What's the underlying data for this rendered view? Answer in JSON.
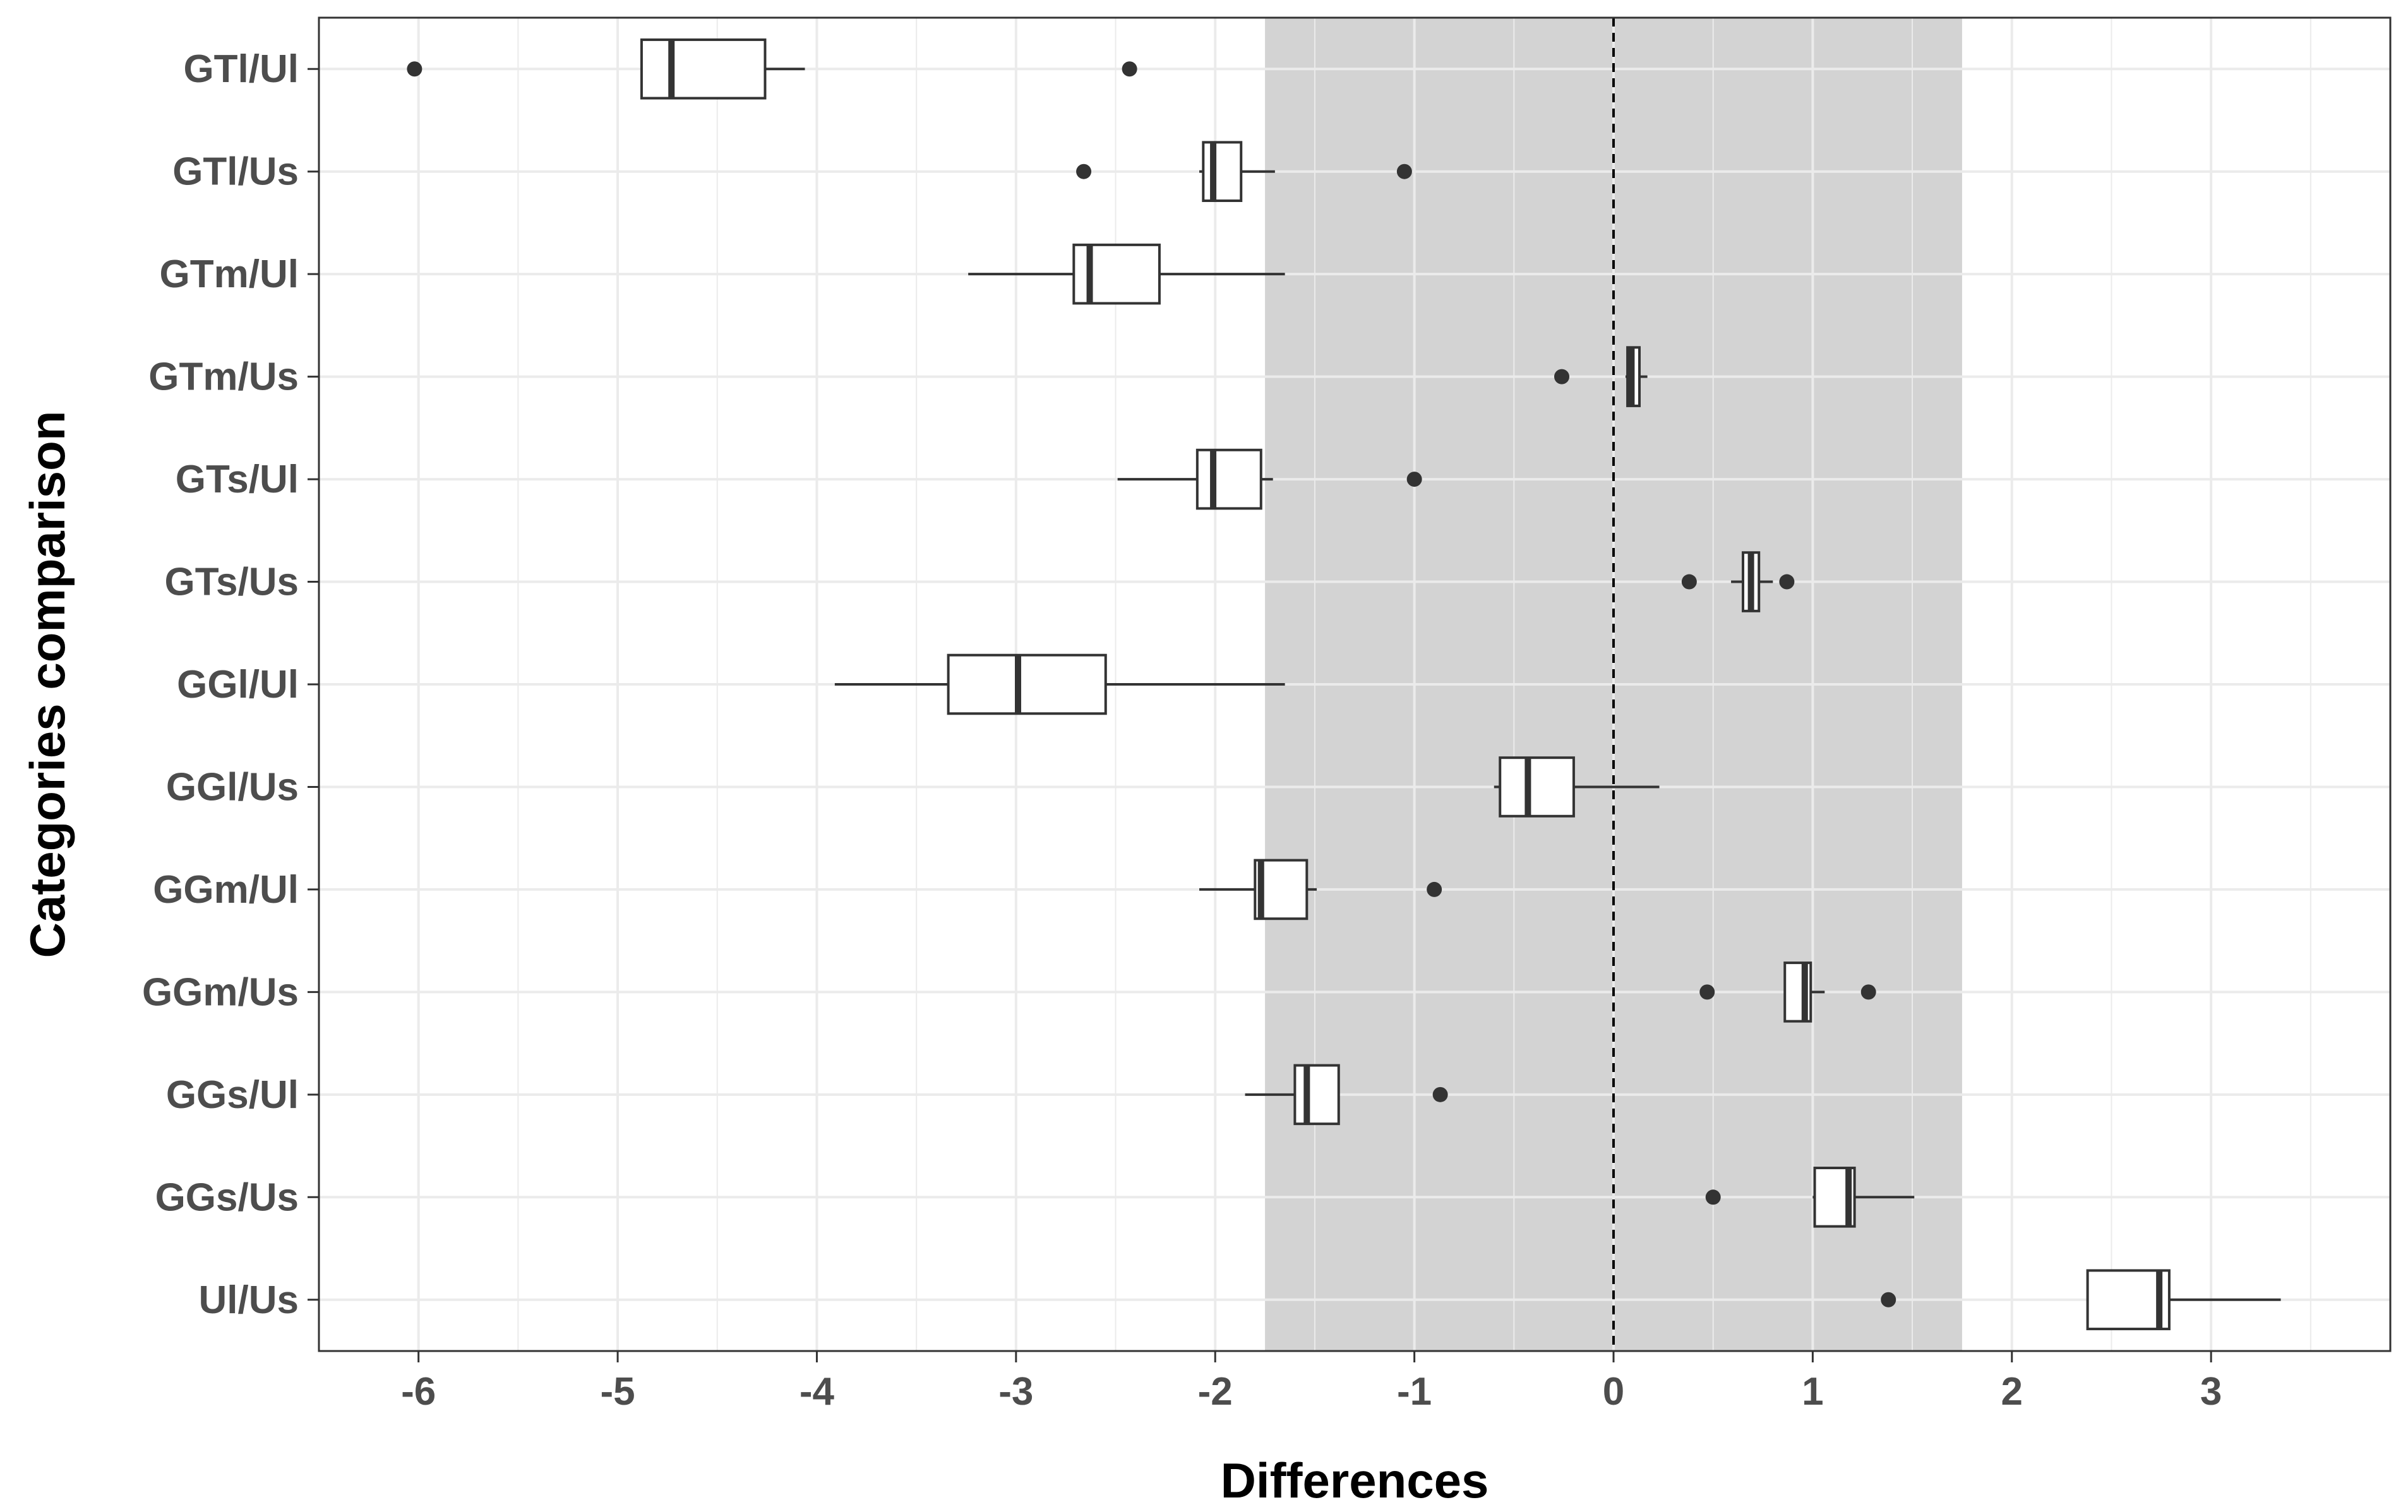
{
  "chart_data": {
    "type": "boxplot",
    "orientation": "horizontal",
    "xlabel": "Differences",
    "ylabel": "Categories comparison",
    "xlim": [
      -6.5,
      3.9
    ],
    "x_ticks": [
      -6,
      -5,
      -4,
      -3,
      -2,
      -1,
      0,
      1,
      2,
      3
    ],
    "x_tick_labels": [
      "-6",
      "-5",
      "-4",
      "-3",
      "-2",
      "-1",
      "0",
      "1",
      "2",
      "3"
    ],
    "grid": true,
    "reference_line": {
      "x": 0,
      "style": "dashed"
    },
    "shaded_region": {
      "x_range": [
        -1.75,
        1.75
      ],
      "color": "#d3d3d3"
    },
    "colors": {
      "box_fill": "#ffffff",
      "box_stroke": "#333333",
      "outlier": "#333333",
      "grid": "#ebebeb",
      "band": "#d3d3d3"
    },
    "categories": [
      "GTl/Ul",
      "GTl/Us",
      "GTm/Ul",
      "GTm/Us",
      "GTs/Ul",
      "GTs/Us",
      "GGl/Ul",
      "GGl/Us",
      "GGm/Ul",
      "GGm/Us",
      "GGs/Ul",
      "GGs/Us",
      "Ul/Us"
    ],
    "boxes": [
      {
        "category": "GTl/Ul",
        "whisker_low": -4.88,
        "q1": -4.88,
        "median": -4.73,
        "q3": -4.26,
        "whisker_high": -4.06,
        "outliers": [
          -6.02,
          -2.43
        ]
      },
      {
        "category": "GTl/Us",
        "whisker_low": -2.08,
        "q1": -2.06,
        "median": -2.01,
        "q3": -1.87,
        "whisker_high": -1.7,
        "outliers": [
          -2.66,
          -1.05
        ]
      },
      {
        "category": "GTm/Ul",
        "whisker_low": -3.24,
        "q1": -2.71,
        "median": -2.63,
        "q3": -2.28,
        "whisker_high": -1.65,
        "outliers": []
      },
      {
        "category": "GTm/Us",
        "whisker_low": 0.06,
        "q1": 0.07,
        "median": 0.09,
        "q3": 0.13,
        "whisker_high": 0.17,
        "outliers": [
          -0.26
        ]
      },
      {
        "category": "GTs/Ul",
        "whisker_low": -2.49,
        "q1": -2.09,
        "median": -2.01,
        "q3": -1.77,
        "whisker_high": -1.71,
        "outliers": [
          -1.0
        ]
      },
      {
        "category": "GTs/Us",
        "whisker_low": 0.59,
        "q1": 0.65,
        "median": 0.69,
        "q3": 0.73,
        "whisker_high": 0.8,
        "outliers": [
          0.38,
          0.87
        ]
      },
      {
        "category": "GGl/Ul",
        "whisker_low": -3.91,
        "q1": -3.34,
        "median": -2.99,
        "q3": -2.55,
        "whisker_high": -1.65,
        "outliers": []
      },
      {
        "category": "GGl/Us",
        "whisker_low": -0.6,
        "q1": -0.57,
        "median": -0.43,
        "q3": -0.2,
        "whisker_high": 0.23,
        "outliers": []
      },
      {
        "category": "GGm/Ul",
        "whisker_low": -2.08,
        "q1": -1.8,
        "median": -1.77,
        "q3": -1.54,
        "whisker_high": -1.49,
        "outliers": [
          -0.9
        ]
      },
      {
        "category": "GGm/Us",
        "whisker_low": 0.86,
        "q1": 0.86,
        "median": 0.96,
        "q3": 0.99,
        "whisker_high": 1.06,
        "outliers": [
          0.47,
          1.28
        ]
      },
      {
        "category": "GGs/Ul",
        "whisker_low": -1.85,
        "q1": -1.6,
        "median": -1.54,
        "q3": -1.38,
        "whisker_high": -1.38,
        "outliers": [
          -0.87
        ]
      },
      {
        "category": "GGs/Us",
        "whisker_low": 1.0,
        "q1": 1.01,
        "median": 1.18,
        "q3": 1.21,
        "whisker_high": 1.51,
        "outliers": [
          0.5
        ]
      },
      {
        "category": "Ul/Us",
        "whisker_low": 2.38,
        "q1": 2.38,
        "median": 2.74,
        "q3": 2.79,
        "whisker_high": 3.35,
        "outliers": [
          1.38
        ]
      }
    ]
  }
}
